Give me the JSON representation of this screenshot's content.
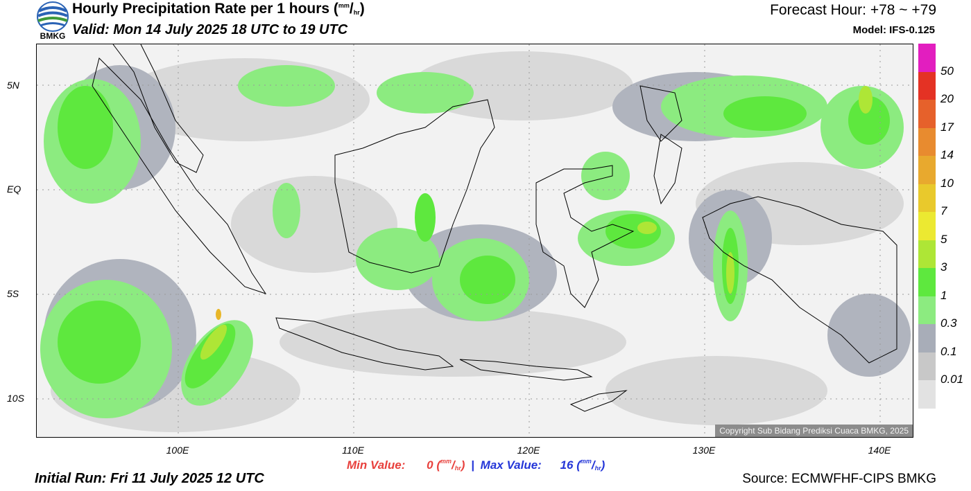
{
  "header": {
    "logo_text": "BMKG",
    "title_main": "Hourly Precipitation Rate per 1 hours (",
    "title_unit_num": "mm",
    "title_unit_sep": "/",
    "title_unit_den": "hr",
    "title_close": ")",
    "valid": "Valid: Mon 14 July 2025 18 UTC to 19 UTC",
    "forecast_hour": "Forecast Hour: +78 ~ +79",
    "model": "Model: IFS-0.125"
  },
  "map": {
    "lat_labels": [
      "5N",
      "EQ",
      "5S",
      "10S"
    ],
    "lon_labels": [
      "100E",
      "110E",
      "120E",
      "130E",
      "140E"
    ],
    "copyright": "Copyright Sub Bidang Prediksi Cuaca BMKG, 2025",
    "colors": {
      "land_outline": "#000000",
      "rain_light": "#d9d9d9",
      "rain_grey": "#a8adb8",
      "rain_green_light": "#8ceb80",
      "rain_green": "#5ee83e",
      "rain_lime": "#aee636",
      "rain_yellow": "#ece931",
      "rain_orange": "#e8b628"
    }
  },
  "legend": {
    "labels": [
      "50",
      "20",
      "17",
      "14",
      "10",
      "7",
      "5",
      "3",
      "1",
      "0.3",
      "0.1",
      "0.01"
    ],
    "colors": [
      "#e21ebf",
      "#e43224",
      "#e6612b",
      "#e88b2f",
      "#e8a92e",
      "#e9c92c",
      "#ece931",
      "#aee636",
      "#5ee83e",
      "#8ceb80",
      "#a8adb8",
      "#c8c8c8",
      "#e2e2e2"
    ]
  },
  "footer": {
    "min_label": "Min Value:",
    "min_value": "0",
    "max_label": "Max Value:",
    "max_value": "16",
    "unit_num": "mm",
    "unit_den": "hr",
    "separator": "|",
    "initial_run": "Initial Run: Fri 11 July 2025 12 UTC",
    "source": "Source: ECMWFHF-CIPS BMKG"
  }
}
